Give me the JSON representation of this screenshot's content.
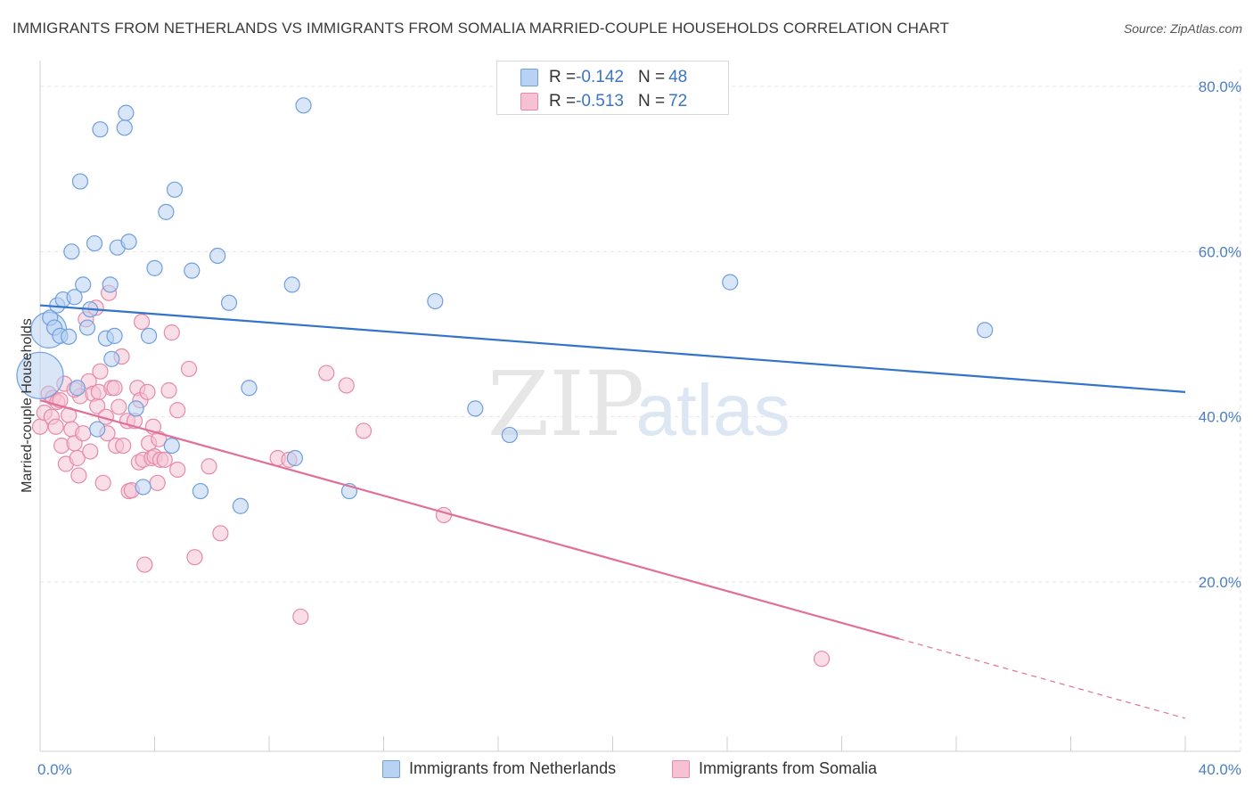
{
  "title": "IMMIGRANTS FROM NETHERLANDS VS IMMIGRANTS FROM SOMALIA MARRIED-COUPLE HOUSEHOLDS CORRELATION CHART",
  "source": "Source: ZipAtlas.com",
  "watermark": {
    "zip": "ZIP",
    "atlas": "atlas"
  },
  "colors": {
    "blue_fill": "#b8d2f3",
    "blue_stroke": "#6f9fdd",
    "blue_line": "#3373c9",
    "pink_fill": "#f6c2d3",
    "pink_stroke": "#e68aa9",
    "pink_line": "#e0709a",
    "axis_text": "#4a7fc8",
    "grid": "#e4e4e4"
  },
  "legend_top": [
    {
      "r_label": "R = ",
      "r_value": "-0.142",
      "n_label": "N = ",
      "n_value": "48"
    },
    {
      "r_label": "R = ",
      "r_value": "-0.513",
      "n_label": "N = ",
      "n_value": "72"
    }
  ],
  "chart_data": {
    "type": "scatter",
    "title": "IMMIGRANTS FROM NETHERLANDS VS IMMIGRANTS FROM SOMALIA MARRIED-COUPLE HOUSEHOLDS CORRELATION CHART",
    "xlabel": "",
    "ylabel": "Married-couple Households",
    "xlim": [
      0,
      40
    ],
    "ylim": [
      0,
      83
    ],
    "x_tick_labels": [
      "0.0%",
      "40.0%"
    ],
    "y_ticks": [
      20,
      40,
      60,
      80
    ],
    "y_tick_labels": [
      "20.0%",
      "40.0%",
      "60.0%",
      "80.0%"
    ],
    "grid": true,
    "legend_position": "bottom",
    "series": [
      {
        "name": "Immigrants from Netherlands",
        "color": "#b8d2f3",
        "r": -0.142,
        "n": 48,
        "trend": {
          "x0": 0,
          "y0": 53.5,
          "x1": 40,
          "y1": 43.0,
          "solid_until": 40
        },
        "points": [
          [
            0.0,
            45.0,
            3
          ],
          [
            0.3,
            50.5,
            2
          ],
          [
            0.35,
            52.0,
            1
          ],
          [
            0.5,
            50.8,
            1
          ],
          [
            0.6,
            53.5,
            1
          ],
          [
            0.7,
            49.8,
            1
          ],
          [
            0.8,
            54.2,
            1
          ],
          [
            1.0,
            49.7,
            1
          ],
          [
            1.1,
            60.0,
            1
          ],
          [
            1.2,
            54.5,
            1
          ],
          [
            1.3,
            43.5,
            1
          ],
          [
            1.4,
            68.5,
            1
          ],
          [
            1.5,
            56.0,
            1
          ],
          [
            1.65,
            50.8,
            1
          ],
          [
            1.75,
            53.0,
            1
          ],
          [
            1.9,
            61.0,
            1
          ],
          [
            2.0,
            38.5,
            1
          ],
          [
            2.1,
            74.8,
            1
          ],
          [
            2.3,
            49.5,
            1
          ],
          [
            2.45,
            56.0,
            1
          ],
          [
            2.6,
            49.8,
            1
          ],
          [
            2.5,
            47.0,
            1
          ],
          [
            2.7,
            60.5,
            1
          ],
          [
            2.95,
            75.0,
            1
          ],
          [
            3.0,
            76.8,
            1
          ],
          [
            3.1,
            61.2,
            1
          ],
          [
            3.35,
            41.0,
            1
          ],
          [
            3.6,
            31.5,
            1
          ],
          [
            3.8,
            49.8,
            1
          ],
          [
            4.0,
            58.0,
            1
          ],
          [
            4.4,
            64.8,
            1
          ],
          [
            4.6,
            36.5,
            1
          ],
          [
            4.7,
            67.5,
            1
          ],
          [
            5.3,
            57.7,
            1
          ],
          [
            5.6,
            31.0,
            1
          ],
          [
            6.2,
            59.5,
            1
          ],
          [
            6.6,
            53.8,
            1
          ],
          [
            7.0,
            29.2,
            1
          ],
          [
            7.3,
            43.5,
            1
          ],
          [
            8.8,
            56.0,
            1
          ],
          [
            8.9,
            35.0,
            1
          ],
          [
            9.2,
            77.7,
            1
          ],
          [
            10.8,
            31.0,
            1
          ],
          [
            13.8,
            54.0,
            1
          ],
          [
            15.2,
            41.0,
            1
          ],
          [
            16.4,
            37.8,
            1
          ],
          [
            24.1,
            56.3,
            1
          ],
          [
            33.0,
            50.5,
            1
          ]
        ]
      },
      {
        "name": "Immigrants from Somalia",
        "color": "#f6c2d3",
        "r": -0.513,
        "n": 72,
        "trend": {
          "x0": 0,
          "y0": 42.0,
          "x1": 40,
          "y1": 3.5,
          "solid_until": 30
        },
        "points": [
          [
            0.0,
            38.8,
            1
          ],
          [
            0.15,
            40.5,
            1
          ],
          [
            0.3,
            42.8,
            1
          ],
          [
            0.4,
            40.0,
            1
          ],
          [
            0.45,
            42.3,
            1
          ],
          [
            0.55,
            38.8,
            1
          ],
          [
            0.6,
            41.8,
            1
          ],
          [
            0.7,
            42.0,
            1
          ],
          [
            0.75,
            36.5,
            1
          ],
          [
            0.85,
            44.0,
            1
          ],
          [
            0.9,
            34.3,
            1
          ],
          [
            1.0,
            40.2,
            1
          ],
          [
            1.1,
            38.5,
            1
          ],
          [
            1.2,
            36.8,
            1
          ],
          [
            1.3,
            35.0,
            1
          ],
          [
            1.35,
            32.9,
            1
          ],
          [
            1.4,
            42.5,
            1
          ],
          [
            1.5,
            38.0,
            1
          ],
          [
            1.6,
            51.8,
            1
          ],
          [
            1.7,
            44.3,
            1
          ],
          [
            1.75,
            35.8,
            1
          ],
          [
            1.85,
            42.8,
            1
          ],
          [
            1.95,
            53.2,
            1
          ],
          [
            2.0,
            41.3,
            1
          ],
          [
            2.05,
            43.0,
            1
          ],
          [
            2.1,
            45.5,
            1
          ],
          [
            2.2,
            32.0,
            1
          ],
          [
            2.3,
            40.0,
            1
          ],
          [
            2.35,
            38.0,
            1
          ],
          [
            2.4,
            55.0,
            1
          ],
          [
            2.5,
            43.5,
            1
          ],
          [
            2.6,
            43.5,
            1
          ],
          [
            2.65,
            36.5,
            1
          ],
          [
            2.75,
            41.2,
            1
          ],
          [
            2.85,
            47.3,
            1
          ],
          [
            2.9,
            36.5,
            1
          ],
          [
            3.05,
            39.5,
            1
          ],
          [
            3.1,
            31.0,
            1
          ],
          [
            3.2,
            31.1,
            1
          ],
          [
            3.3,
            39.5,
            1
          ],
          [
            3.4,
            43.5,
            1
          ],
          [
            3.45,
            34.5,
            1
          ],
          [
            3.5,
            42.0,
            1
          ],
          [
            3.55,
            51.5,
            1
          ],
          [
            3.6,
            34.8,
            1
          ],
          [
            3.65,
            22.1,
            1
          ],
          [
            3.75,
            43.0,
            1
          ],
          [
            3.8,
            36.8,
            1
          ],
          [
            3.9,
            35.0,
            1
          ],
          [
            3.95,
            38.8,
            1
          ],
          [
            4.0,
            35.2,
            1
          ],
          [
            4.1,
            32.0,
            1
          ],
          [
            4.15,
            37.3,
            1
          ],
          [
            4.2,
            34.8,
            1
          ],
          [
            4.35,
            34.8,
            1
          ],
          [
            4.5,
            43.2,
            1
          ],
          [
            4.6,
            50.2,
            1
          ],
          [
            4.8,
            40.8,
            1
          ],
          [
            5.2,
            45.8,
            1
          ],
          [
            5.4,
            23.0,
            1
          ],
          [
            5.9,
            34.0,
            1
          ],
          [
            6.3,
            25.9,
            1
          ],
          [
            8.3,
            35.0,
            1
          ],
          [
            8.7,
            34.8,
            1
          ],
          [
            9.1,
            15.8,
            1
          ],
          [
            10.0,
            45.3,
            1
          ],
          [
            10.7,
            43.8,
            1
          ],
          [
            11.3,
            38.3,
            1
          ],
          [
            14.1,
            28.1,
            1
          ],
          [
            27.3,
            10.7,
            1
          ],
          [
            4.8,
            33.6,
            1
          ],
          [
            1.2,
            43.3,
            1
          ]
        ]
      }
    ]
  }
}
